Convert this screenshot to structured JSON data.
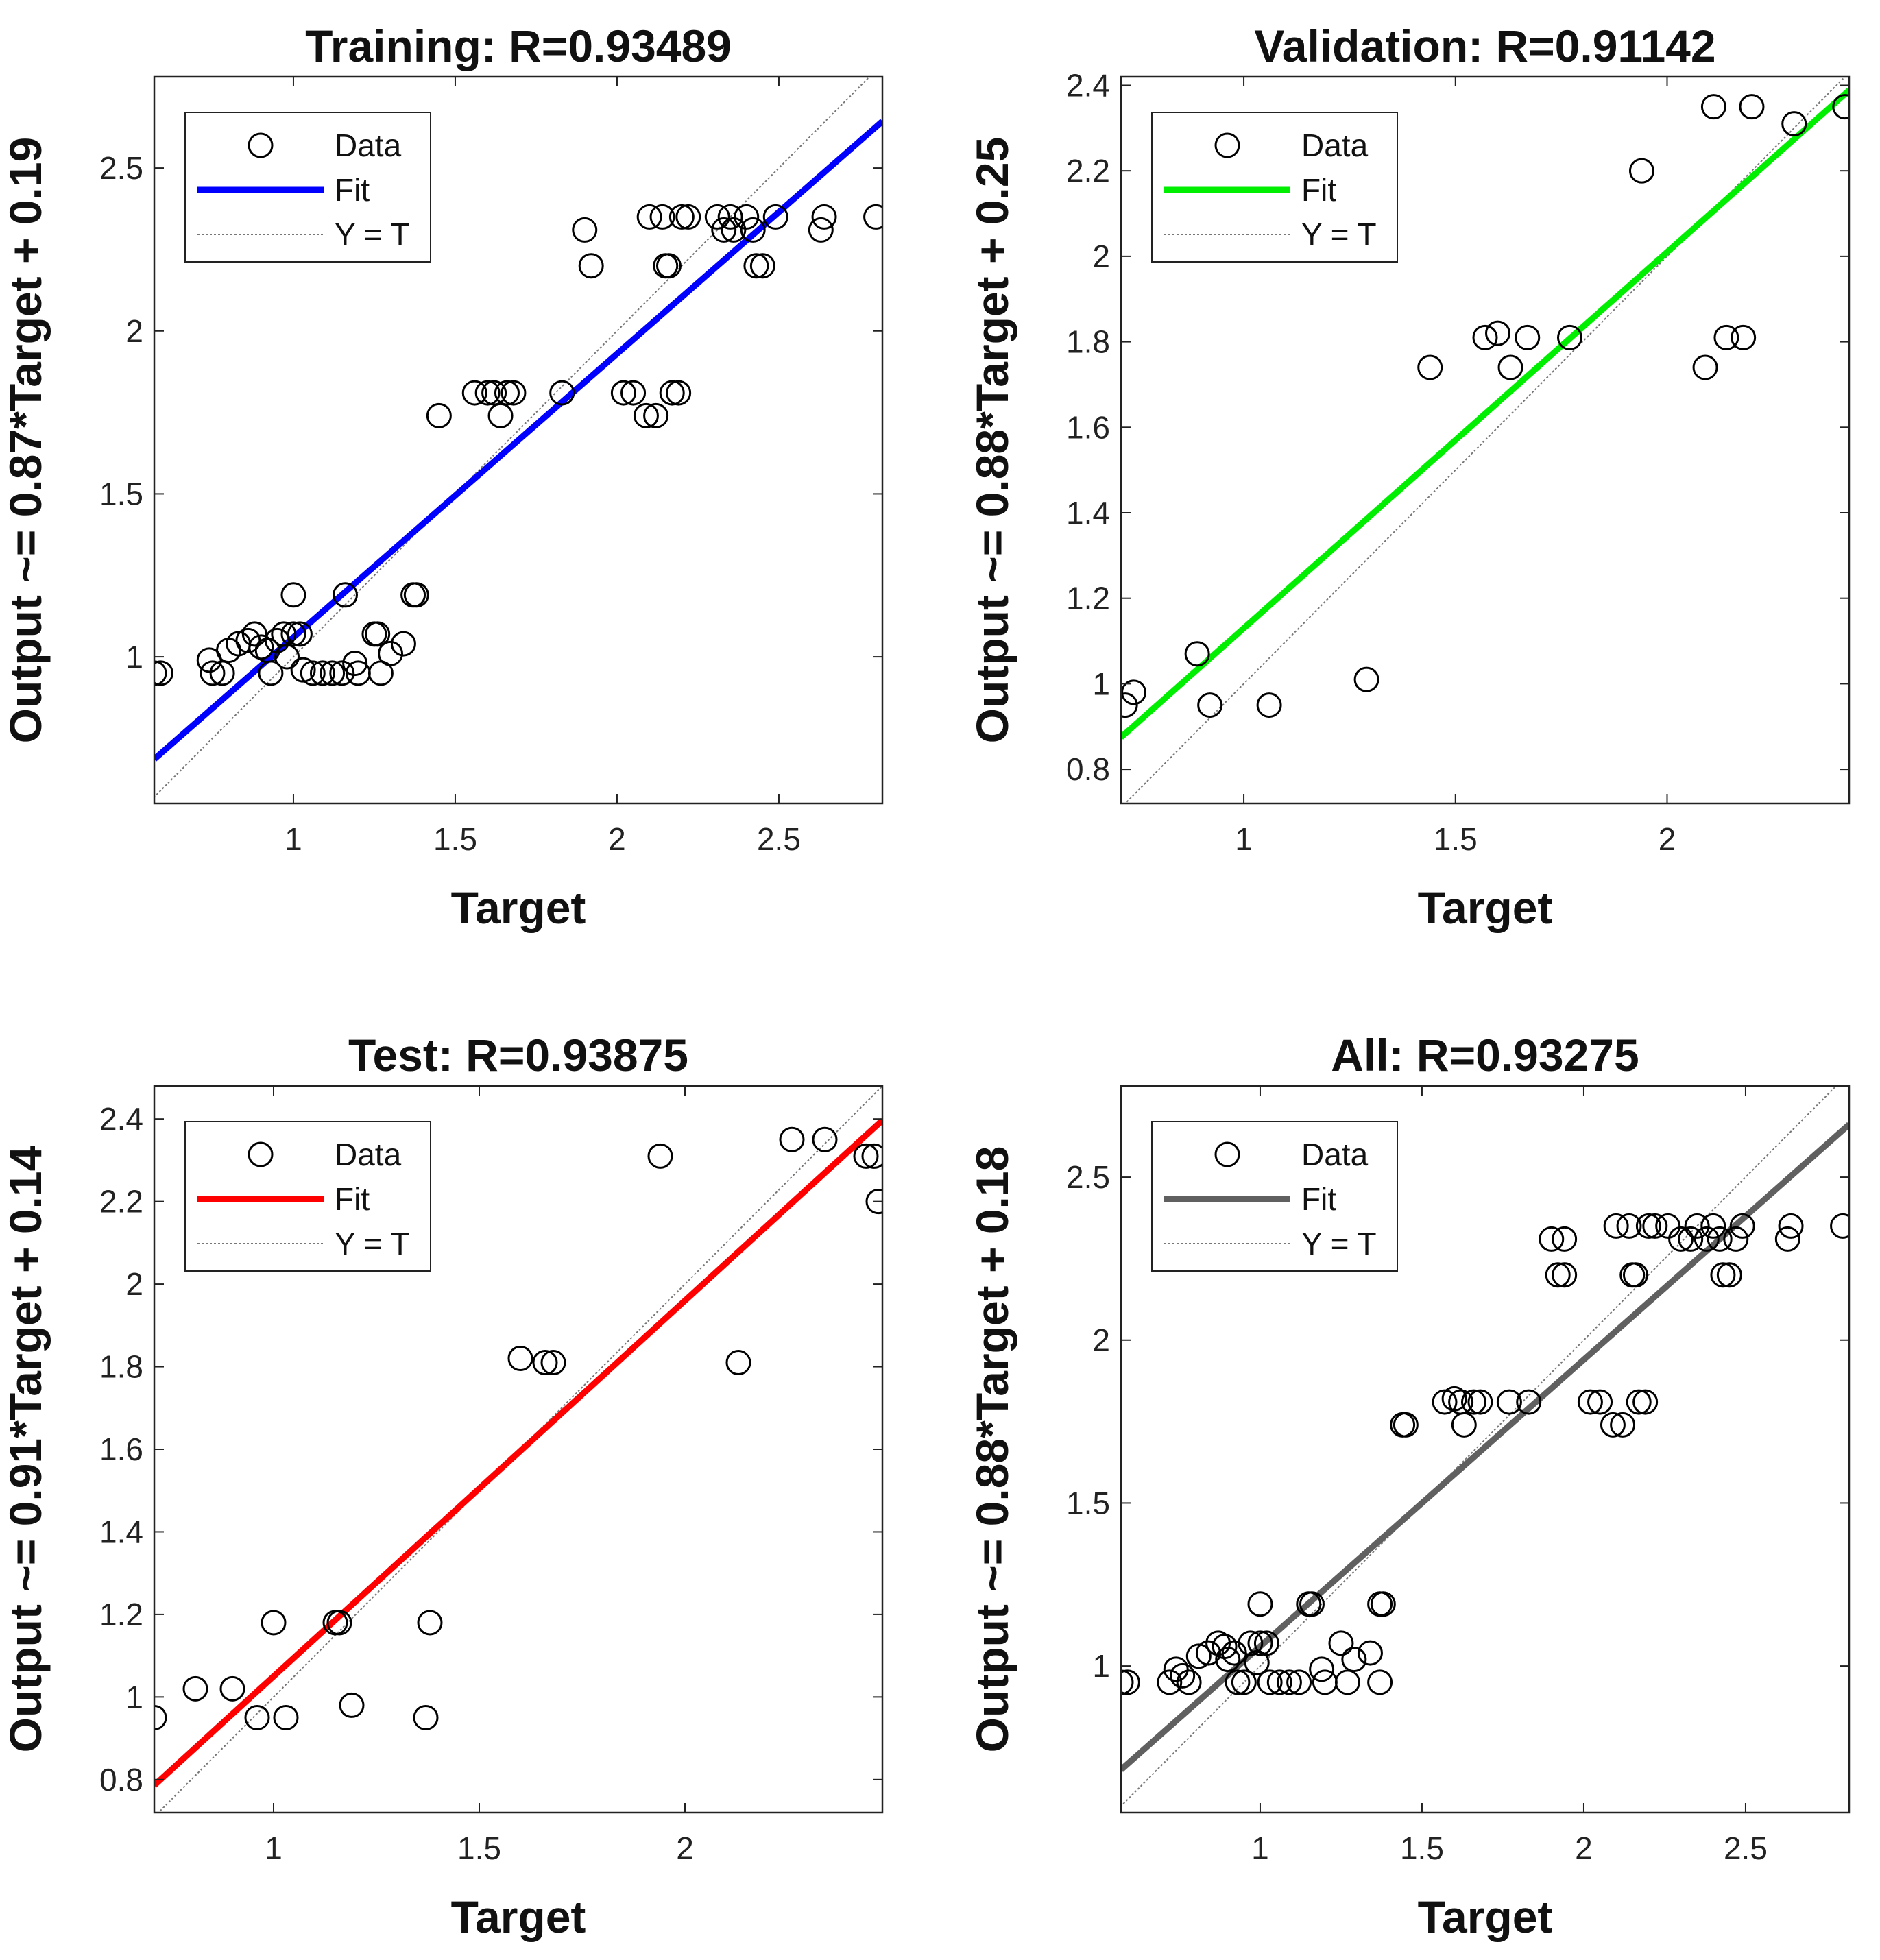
{
  "chart_data": [
    {
      "type": "scatter",
      "title": "Training: R=0.93489",
      "xlabel": "Target",
      "ylabel": "Output ~= 0.87*Target + 0.19",
      "xlim": [
        0.57,
        2.82
      ],
      "ylim": [
        0.55,
        2.78
      ],
      "xticks": [
        1,
        1.5,
        2,
        2.5
      ],
      "xtick_labels": [
        "1",
        "1.5",
        "2",
        "2.5"
      ],
      "yticks": [
        1,
        1.5,
        2,
        2.5
      ],
      "ytick_labels": [
        "1",
        "1.5",
        "2",
        "2.5"
      ],
      "fit": {
        "slope": 0.87,
        "intercept": 0.19,
        "color": "#0000ff"
      },
      "legend": {
        "position": "top-left",
        "entries": [
          "Data",
          "Fit",
          "Y = T"
        ]
      },
      "points": [
        [
          0.57,
          0.95
        ],
        [
          0.59,
          0.95
        ],
        [
          0.74,
          0.99
        ],
        [
          0.75,
          0.95
        ],
        [
          0.78,
          0.95
        ],
        [
          0.8,
          1.02
        ],
        [
          0.83,
          1.04
        ],
        [
          0.86,
          1.05
        ],
        [
          0.88,
          1.07
        ],
        [
          0.9,
          1.03
        ],
        [
          0.92,
          1.02
        ],
        [
          0.93,
          0.95
        ],
        [
          0.95,
          1.05
        ],
        [
          0.97,
          1.07
        ],
        [
          0.98,
          1.0
        ],
        [
          1.0,
          1.07
        ],
        [
          1.0,
          1.19
        ],
        [
          1.02,
          1.07
        ],
        [
          1.03,
          0.96
        ],
        [
          1.06,
          0.95
        ],
        [
          1.09,
          0.95
        ],
        [
          1.12,
          0.95
        ],
        [
          1.15,
          0.95
        ],
        [
          1.16,
          1.19
        ],
        [
          1.19,
          0.98
        ],
        [
          1.2,
          0.95
        ],
        [
          1.25,
          1.07
        ],
        [
          1.26,
          1.07
        ],
        [
          1.27,
          0.95
        ],
        [
          1.3,
          1.01
        ],
        [
          1.34,
          1.04
        ],
        [
          1.37,
          1.19
        ],
        [
          1.38,
          1.19
        ],
        [
          1.45,
          1.74
        ],
        [
          1.56,
          1.81
        ],
        [
          1.6,
          1.81
        ],
        [
          1.62,
          1.81
        ],
        [
          1.64,
          1.74
        ],
        [
          1.66,
          1.81
        ],
        [
          1.68,
          1.81
        ],
        [
          1.83,
          1.81
        ],
        [
          1.9,
          2.31
        ],
        [
          1.92,
          2.2
        ],
        [
          2.02,
          1.81
        ],
        [
          2.05,
          1.81
        ],
        [
          2.09,
          1.74
        ],
        [
          2.1,
          2.35
        ],
        [
          2.12,
          1.74
        ],
        [
          2.14,
          2.35
        ],
        [
          2.15,
          2.2
        ],
        [
          2.16,
          2.2
        ],
        [
          2.17,
          1.81
        ],
        [
          2.19,
          1.81
        ],
        [
          2.2,
          2.35
        ],
        [
          2.22,
          2.35
        ],
        [
          2.31,
          2.35
        ],
        [
          2.33,
          2.31
        ],
        [
          2.35,
          2.35
        ],
        [
          2.36,
          2.31
        ],
        [
          2.4,
          2.35
        ],
        [
          2.42,
          2.31
        ],
        [
          2.43,
          2.2
        ],
        [
          2.45,
          2.2
        ],
        [
          2.49,
          2.35
        ],
        [
          2.63,
          2.31
        ],
        [
          2.64,
          2.35
        ],
        [
          2.8,
          2.35
        ]
      ]
    },
    {
      "type": "scatter",
      "title": "Validation: R=0.91142",
      "xlabel": "Target",
      "ylabel": "Output ~= 0.88*Target + 0.25",
      "xlim": [
        0.71,
        2.43
      ],
      "ylim": [
        0.72,
        2.42
      ],
      "xticks": [
        1,
        1.5,
        2
      ],
      "xtick_labels": [
        "1",
        "1.5",
        "2"
      ],
      "yticks": [
        0.8,
        1,
        1.2,
        1.4,
        1.6,
        1.8,
        2,
        2.2,
        2.4
      ],
      "ytick_labels": [
        "0.8",
        "1",
        "1.2",
        "1.4",
        "1.6",
        "1.8",
        "2",
        "2.2",
        "2.4"
      ],
      "fit": {
        "slope": 0.88,
        "intercept": 0.25,
        "color": "#00ee00"
      },
      "legend": {
        "position": "top-left",
        "entries": [
          "Data",
          "Fit",
          "Y = T"
        ]
      },
      "points": [
        [
          0.72,
          0.95
        ],
        [
          0.74,
          0.98
        ],
        [
          0.89,
          1.07
        ],
        [
          0.92,
          0.95
        ],
        [
          1.06,
          0.95
        ],
        [
          1.29,
          1.01
        ],
        [
          1.44,
          1.74
        ],
        [
          1.57,
          1.81
        ],
        [
          1.6,
          1.82
        ],
        [
          1.63,
          1.74
        ],
        [
          1.67,
          1.81
        ],
        [
          1.77,
          1.81
        ],
        [
          1.94,
          2.2
        ],
        [
          2.09,
          1.74
        ],
        [
          2.11,
          2.35
        ],
        [
          2.14,
          1.81
        ],
        [
          2.18,
          1.81
        ],
        [
          2.2,
          2.35
        ],
        [
          2.3,
          2.31
        ],
        [
          2.42,
          2.35
        ]
      ]
    },
    {
      "type": "scatter",
      "title": "Test: R=0.93875",
      "xlabel": "Target",
      "ylabel": "Output ~= 0.91*Target + 0.14",
      "xlim": [
        0.71,
        2.48
      ],
      "ylim": [
        0.72,
        2.48
      ],
      "xticks": [
        1,
        1.5,
        2
      ],
      "xtick_labels": [
        "1",
        "1.5",
        "2"
      ],
      "yticks": [
        0.8,
        1,
        1.2,
        1.4,
        1.6,
        1.8,
        2,
        2.2,
        2.4
      ],
      "ytick_labels": [
        "0.8",
        "1",
        "1.2",
        "1.4",
        "1.6",
        "1.8",
        "2",
        "2.2",
        "2.4"
      ],
      "fit": {
        "slope": 0.91,
        "intercept": 0.14,
        "color": "#ff0000"
      },
      "legend": {
        "position": "top-left",
        "entries": [
          "Data",
          "Fit",
          "Y = T"
        ]
      },
      "points": [
        [
          0.71,
          0.95
        ],
        [
          0.81,
          1.02
        ],
        [
          0.9,
          1.02
        ],
        [
          0.96,
          0.95
        ],
        [
          1.0,
          1.18
        ],
        [
          1.03,
          0.95
        ],
        [
          1.15,
          1.18
        ],
        [
          1.16,
          1.18
        ],
        [
          1.19,
          0.98
        ],
        [
          1.37,
          0.95
        ],
        [
          1.38,
          1.18
        ],
        [
          1.6,
          1.82
        ],
        [
          1.66,
          1.81
        ],
        [
          1.68,
          1.81
        ],
        [
          1.94,
          2.31
        ],
        [
          2.13,
          1.81
        ],
        [
          2.26,
          2.35
        ],
        [
          2.34,
          2.35
        ],
        [
          2.44,
          2.31
        ],
        [
          2.46,
          2.31
        ],
        [
          2.47,
          2.2
        ]
      ]
    },
    {
      "type": "scatter",
      "title": "All: R=0.93275",
      "xlabel": "Target",
      "ylabel": "Output ~= 0.88*Target + 0.18",
      "xlim": [
        0.57,
        2.82
      ],
      "ylim": [
        0.55,
        2.78
      ],
      "xticks": [
        1,
        1.5,
        2,
        2.5
      ],
      "xtick_labels": [
        "1",
        "1.5",
        "2",
        "2.5"
      ],
      "yticks": [
        1,
        1.5,
        2,
        2.5
      ],
      "ytick_labels": [
        "1",
        "1.5",
        "2",
        "2.5"
      ],
      "fit": {
        "slope": 0.88,
        "intercept": 0.18,
        "color": "#606060"
      },
      "legend": {
        "position": "top-left",
        "entries": [
          "Data",
          "Fit",
          "Y = T"
        ]
      },
      "points": [
        [
          0.57,
          0.95
        ],
        [
          0.59,
          0.95
        ],
        [
          0.72,
          0.95
        ],
        [
          0.74,
          0.99
        ],
        [
          0.76,
          0.97
        ],
        [
          0.78,
          0.95
        ],
        [
          0.81,
          1.03
        ],
        [
          0.84,
          1.04
        ],
        [
          0.87,
          1.07
        ],
        [
          0.89,
          1.06
        ],
        [
          0.9,
          1.02
        ],
        [
          0.92,
          1.04
        ],
        [
          0.93,
          0.95
        ],
        [
          0.95,
          0.95
        ],
        [
          0.97,
          1.07
        ],
        [
          0.99,
          1.01
        ],
        [
          1.0,
          1.07
        ],
        [
          1.0,
          1.19
        ],
        [
          1.02,
          1.07
        ],
        [
          1.03,
          0.95
        ],
        [
          1.06,
          0.95
        ],
        [
          1.09,
          0.95
        ],
        [
          1.12,
          0.95
        ],
        [
          1.15,
          1.19
        ],
        [
          1.16,
          1.19
        ],
        [
          1.19,
          0.99
        ],
        [
          1.2,
          0.95
        ],
        [
          1.25,
          1.07
        ],
        [
          1.27,
          0.95
        ],
        [
          1.29,
          1.02
        ],
        [
          1.34,
          1.04
        ],
        [
          1.37,
          0.95
        ],
        [
          1.37,
          1.19
        ],
        [
          1.38,
          1.19
        ],
        [
          1.44,
          1.74
        ],
        [
          1.45,
          1.74
        ],
        [
          1.57,
          1.81
        ],
        [
          1.6,
          1.82
        ],
        [
          1.62,
          1.81
        ],
        [
          1.63,
          1.74
        ],
        [
          1.66,
          1.81
        ],
        [
          1.68,
          1.81
        ],
        [
          1.77,
          1.81
        ],
        [
          1.83,
          1.81
        ],
        [
          1.9,
          2.31
        ],
        [
          1.92,
          2.2
        ],
        [
          1.94,
          2.2
        ],
        [
          1.94,
          2.31
        ],
        [
          2.02,
          1.81
        ],
        [
          2.05,
          1.81
        ],
        [
          2.09,
          1.74
        ],
        [
          2.1,
          2.35
        ],
        [
          2.12,
          1.74
        ],
        [
          2.14,
          2.35
        ],
        [
          2.15,
          2.2
        ],
        [
          2.16,
          2.2
        ],
        [
          2.17,
          1.81
        ],
        [
          2.19,
          1.81
        ],
        [
          2.2,
          2.35
        ],
        [
          2.22,
          2.35
        ],
        [
          2.26,
          2.35
        ],
        [
          2.3,
          2.31
        ],
        [
          2.33,
          2.31
        ],
        [
          2.35,
          2.35
        ],
        [
          2.38,
          2.31
        ],
        [
          2.4,
          2.35
        ],
        [
          2.42,
          2.31
        ],
        [
          2.43,
          2.2
        ],
        [
          2.45,
          2.2
        ],
        [
          2.47,
          2.31
        ],
        [
          2.49,
          2.35
        ],
        [
          2.63,
          2.31
        ],
        [
          2.64,
          2.35
        ],
        [
          2.8,
          2.35
        ]
      ]
    }
  ]
}
